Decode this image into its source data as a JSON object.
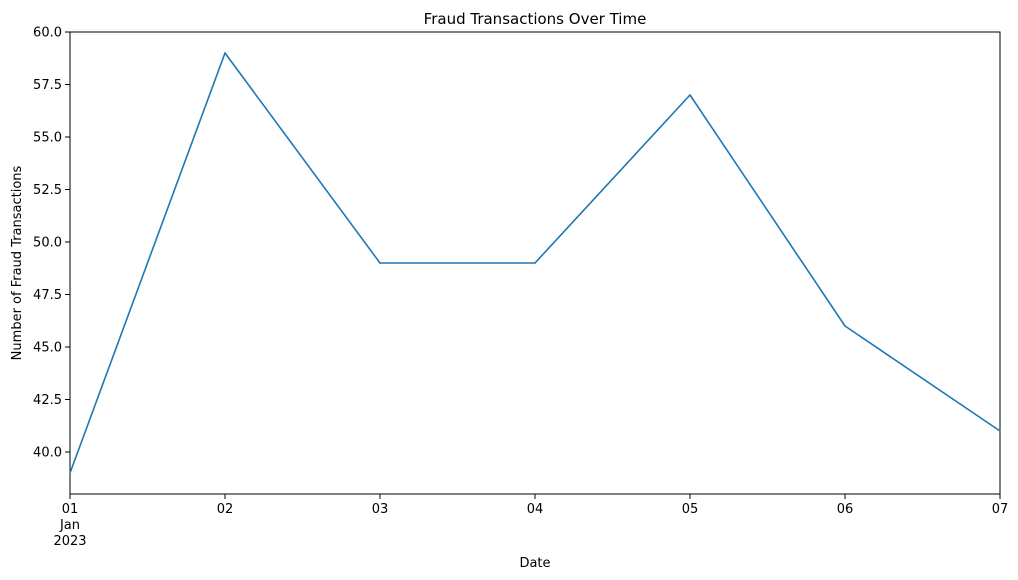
{
  "chart_data": {
    "type": "line",
    "title": "Fraud Transactions Over Time",
    "xlabel": "Date",
    "ylabel": "Number of Fraud Transactions",
    "x": [
      "2023-01-01",
      "2023-01-02",
      "2023-01-03",
      "2023-01-04",
      "2023-01-05",
      "2023-01-06",
      "2023-01-07"
    ],
    "x_tick_labels": [
      "01",
      "02",
      "03",
      "04",
      "05",
      "06",
      "07"
    ],
    "x_secondary_labels": [
      "Jan",
      "2023"
    ],
    "y_ticks": [
      40.0,
      42.5,
      45.0,
      47.5,
      50.0,
      52.5,
      55.0,
      57.5,
      60.0
    ],
    "y_tick_labels": [
      "40.0",
      "42.5",
      "45.0",
      "47.5",
      "50.0",
      "52.5",
      "55.0",
      "57.5",
      "60.0"
    ],
    "ylim": [
      38.0,
      60.0
    ],
    "series": [
      {
        "values": [
          39,
          59,
          49,
          49,
          57,
          46,
          41
        ],
        "color": "#1f77b4"
      }
    ],
    "grid": false,
    "legend": "none"
  }
}
